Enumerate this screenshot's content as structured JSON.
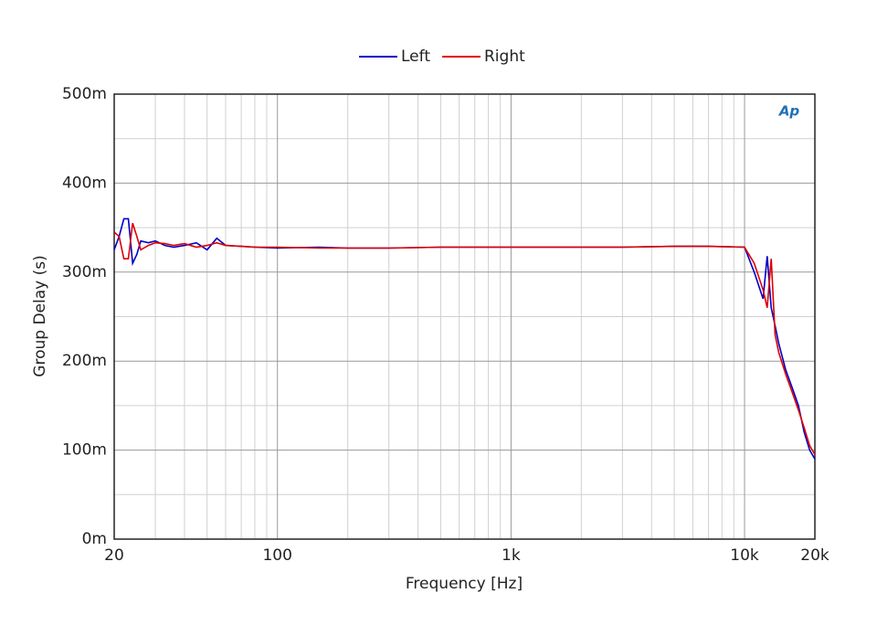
{
  "chart_data": {
    "type": "line",
    "x_label": "Frequency [Hz]",
    "y_label": "Group Delay (s)",
    "logo_text": "Ap",
    "x_log": true,
    "grid": true,
    "legend": "top",
    "xlim": [
      20,
      20000
    ],
    "ylim": [
      0,
      0.5
    ],
    "xticks": [
      20,
      100,
      {
        "value": 1000,
        "label": "1k"
      },
      {
        "value": 10000,
        "label": "10k"
      },
      {
        "value": 20000,
        "label": "20k"
      }
    ],
    "x_minor_ticks": [
      30,
      40,
      50,
      60,
      70,
      80,
      90,
      200,
      300,
      400,
      500,
      600,
      700,
      800,
      900,
      2000,
      3000,
      4000,
      5000,
      6000,
      7000,
      8000,
      9000
    ],
    "yticks": [
      {
        "value": 0,
        "label": "0m"
      },
      {
        "value": 0.1,
        "label": "100m"
      },
      {
        "value": 0.2,
        "label": "200m"
      },
      {
        "value": 0.3,
        "label": "300m"
      },
      {
        "value": 0.4,
        "label": "400m"
      },
      {
        "value": 0.5,
        "label": "500m"
      }
    ],
    "y_minor_ticks": [
      0.05,
      0.15,
      0.25,
      0.35,
      0.45
    ],
    "x": [
      20,
      21,
      22,
      23,
      24,
      25,
      26,
      28,
      30,
      33,
      36,
      40,
      45,
      50,
      55,
      60,
      70,
      80,
      100,
      150,
      200,
      300,
      500,
      1000,
      2000,
      3000,
      5000,
      7000,
      10000,
      11000,
      12000,
      12500,
      13000,
      13500,
      14000,
      15000,
      16000,
      17000,
      18000,
      19000,
      20000
    ],
    "series": [
      {
        "name": "Left",
        "color": "#0000c8",
        "values": [
          0.325,
          0.34,
          0.36,
          0.36,
          0.31,
          0.32,
          0.335,
          0.333,
          0.335,
          0.33,
          0.328,
          0.33,
          0.333,
          0.325,
          0.338,
          0.33,
          0.329,
          0.328,
          0.327,
          0.328,
          0.327,
          0.327,
          0.328,
          0.328,
          0.328,
          0.328,
          0.329,
          0.329,
          0.328,
          0.3,
          0.27,
          0.318,
          0.26,
          0.24,
          0.22,
          0.19,
          0.17,
          0.15,
          0.12,
          0.1,
          0.09
        ]
      },
      {
        "name": "Right",
        "color": "#e00000",
        "values": [
          0.345,
          0.34,
          0.315,
          0.315,
          0.355,
          0.34,
          0.325,
          0.33,
          0.333,
          0.332,
          0.33,
          0.332,
          0.328,
          0.33,
          0.333,
          0.33,
          0.329,
          0.328,
          0.328,
          0.327,
          0.327,
          0.327,
          0.328,
          0.328,
          0.328,
          0.328,
          0.329,
          0.329,
          0.328,
          0.31,
          0.28,
          0.26,
          0.315,
          0.23,
          0.21,
          0.185,
          0.165,
          0.145,
          0.125,
          0.105,
          0.095
        ]
      }
    ]
  }
}
